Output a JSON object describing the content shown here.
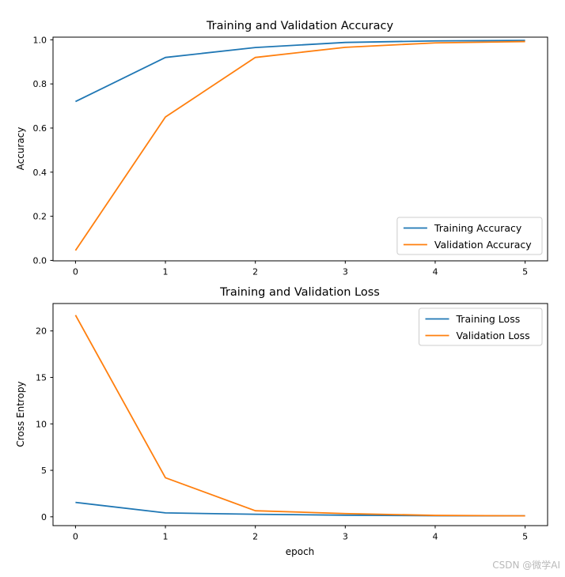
{
  "watermark": {
    "text": "CSDN @微学AI",
    "color": "#b9b9b9"
  },
  "colors": {
    "series_blue": "#1f77b4",
    "series_orange": "#ff7f0e",
    "axes_frame": "#000000",
    "legend_border": "#cccccc",
    "background": "#ffffff"
  },
  "chart_data": [
    {
      "type": "line",
      "title": "Training and Validation Accuracy",
      "xlabel": "",
      "ylabel": "Accuracy",
      "x": [
        0,
        1,
        2,
        3,
        4,
        5
      ],
      "series": [
        {
          "name": "Training Accuracy",
          "color": "#1f77b4",
          "values": [
            0.72,
            0.92,
            0.965,
            0.988,
            0.995,
            0.997
          ]
        },
        {
          "name": "Validation Accuracy",
          "color": "#ff7f0e",
          "values": [
            0.045,
            0.65,
            0.92,
            0.966,
            0.986,
            0.992
          ]
        }
      ],
      "xticks": [
        0,
        1,
        2,
        3,
        4,
        5
      ],
      "xtick_labels": [
        "0",
        "1",
        "2",
        "3",
        "4",
        "5"
      ],
      "yticks": [
        0.0,
        0.2,
        0.4,
        0.6,
        0.8,
        1.0
      ],
      "ytick_labels": [
        "0.0",
        "0.2",
        "0.4",
        "0.6",
        "0.8",
        "1.0"
      ],
      "xlim": [
        -0.25,
        5.25
      ],
      "ylim": [
        -0.002,
        1.012
      ],
      "grid": false,
      "legend_position": "lower right"
    },
    {
      "type": "line",
      "title": "Training and Validation Loss",
      "xlabel": "epoch",
      "ylabel": "Cross Entropy",
      "x": [
        0,
        1,
        2,
        3,
        4,
        5
      ],
      "series": [
        {
          "name": "Training Loss",
          "color": "#1f77b4",
          "values": [
            1.55,
            0.42,
            0.27,
            0.17,
            0.12,
            0.1
          ]
        },
        {
          "name": "Validation Loss",
          "color": "#ff7f0e",
          "values": [
            21.7,
            4.2,
            0.65,
            0.35,
            0.15,
            0.1
          ]
        }
      ],
      "xticks": [
        0,
        1,
        2,
        3,
        4,
        5
      ],
      "xtick_labels": [
        "0",
        "1",
        "2",
        "3",
        "4",
        "5"
      ],
      "yticks": [
        0,
        5,
        10,
        15,
        20
      ],
      "ytick_labels": [
        "0",
        "5",
        "10",
        "15",
        "20"
      ],
      "xlim": [
        -0.25,
        5.25
      ],
      "ylim": [
        -0.95,
        22.95
      ],
      "grid": false,
      "legend_position": "upper right"
    }
  ]
}
